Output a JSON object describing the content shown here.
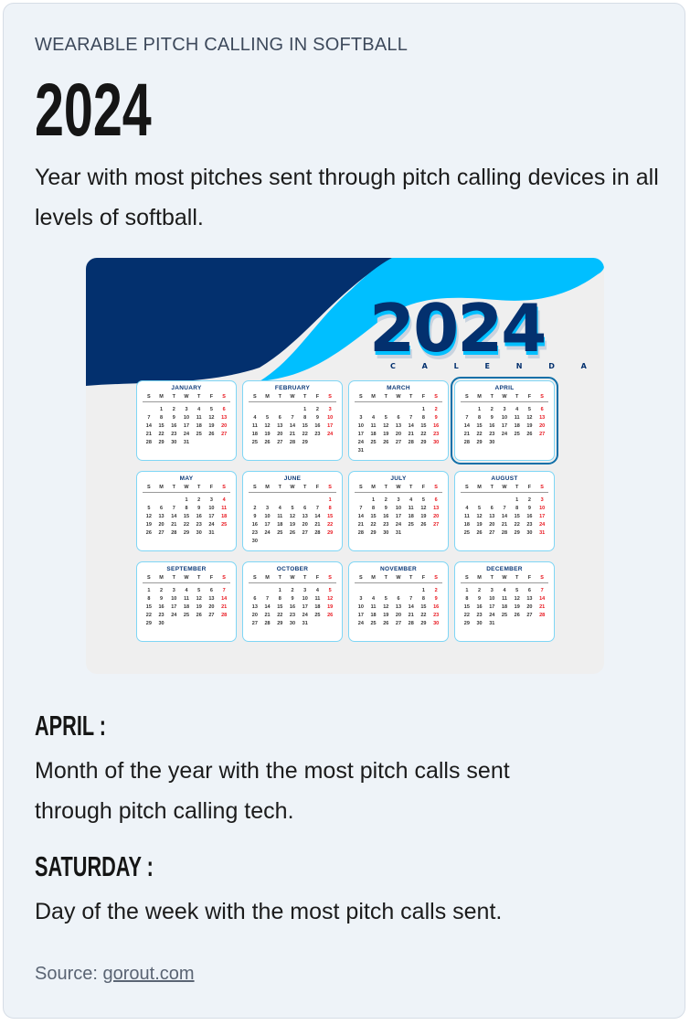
{
  "eyebrow": "WEARABLE PITCH CALLING IN SOFTBALL",
  "headline": "2024",
  "headline_desc": "Year with most pitches sent through pitch calling devices in all levels of softball.",
  "calendar_image": {
    "year_text": "2024",
    "subtitle": "C A L E N D A R",
    "weekday_letters": [
      "S",
      "M",
      "T",
      "W",
      "T",
      "F",
      "S"
    ],
    "highlighted_month": "APRIL",
    "colors": {
      "navy": "#03306e",
      "sky": "#00bfff",
      "weekend": "#e8141c"
    },
    "months": [
      {
        "name": "JANUARY",
        "first_weekday": 1,
        "days": 31
      },
      {
        "name": "FEBRUARY",
        "first_weekday": 4,
        "days": 29
      },
      {
        "name": "MARCH",
        "first_weekday": 5,
        "days": 31
      },
      {
        "name": "APRIL",
        "first_weekday": 1,
        "days": 30
      },
      {
        "name": "MAY",
        "first_weekday": 3,
        "days": 31
      },
      {
        "name": "JUNE",
        "first_weekday": 6,
        "days": 30
      },
      {
        "name": "JULY",
        "first_weekday": 1,
        "days": 31
      },
      {
        "name": "AUGUST",
        "first_weekday": 4,
        "days": 31
      },
      {
        "name": "SEPTEMBER",
        "first_weekday": 0,
        "days": 30
      },
      {
        "name": "OCTOBER",
        "first_weekday": 2,
        "days": 31
      },
      {
        "name": "NOVEMBER",
        "first_weekday": 5,
        "days": 30
      },
      {
        "name": "DECEMBER",
        "first_weekday": 0,
        "days": 31
      }
    ]
  },
  "facts": [
    {
      "title": "APRIL :",
      "desc": "Month of the year with the most pitch calls sent through pitch calling tech."
    },
    {
      "title": "SATURDAY :",
      "desc": "Day of the week with the most pitch calls sent."
    }
  ],
  "source": {
    "label": "Source:",
    "link_text": "gorout.com"
  }
}
